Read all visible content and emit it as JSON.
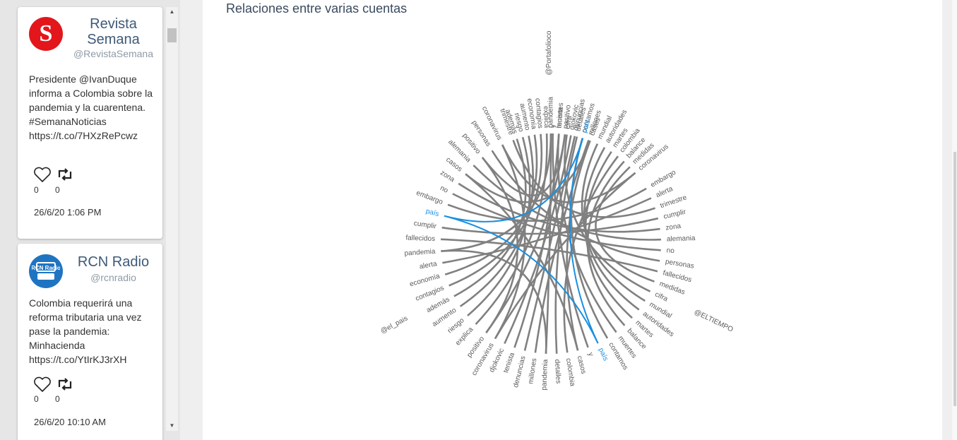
{
  "feed": {
    "tweets": [
      {
        "name": "Revista Semana",
        "handle": "@RevistaSemana",
        "avatar_letter": "S",
        "avatar_color": "#e3161b",
        "text": "Presidente @IvanDuque informa a Colombia sobre la pandemia y la cuarentena. #SemanaNoticias https://t.co/7HXzRePcwz",
        "likes": "0",
        "retweets": "0",
        "date": "26/6/20 1:06 PM"
      },
      {
        "name": "RCN Radio",
        "handle": "@rcnradio",
        "avatar_letter": "RCN Radio",
        "avatar_color": "#1f74c2",
        "text": "Colombia requerirá una reforma tributaria una vez pase la pandemia: Minhacienda https://t.co/YtIrKJ3rXH",
        "likes": "0",
        "retweets": "0",
        "date": "26/6/20 10:10 AM"
      }
    ]
  },
  "main": {
    "title": "Relaciones entre varias cuentas"
  },
  "chart_data": {
    "type": "chord",
    "groups": [
      {
        "name": "@Portafolioco",
        "words": [
          "pandemia",
          "muertes",
          "cifra",
          "denuncias",
          "contamos",
          "casos",
          "mundial",
          "autoridades",
          "martes",
          "colombia",
          "balance",
          "medidas",
          "coronavirus"
        ]
      },
      {
        "name": "@ELTIEMPO",
        "words": [
          "embargo",
          "alerta",
          "trimestre",
          "cumplir",
          "zona",
          "alemania",
          "no",
          "personas",
          "fallecidos",
          "medidas",
          "cifra",
          "mundial",
          "autoridades",
          "martes",
          "balance",
          "muertes",
          "contamos",
          "país",
          "y",
          "casos",
          "colombia",
          "detalles",
          "pandemia",
          "millones",
          "denuncias",
          "tenista",
          "djokovic",
          "coronavirus",
          "positivo"
        ]
      },
      {
        "name": "@el_pais",
        "words": [
          "explica",
          "riesgo",
          "aumento",
          "además",
          "contagios",
          "economía",
          "alerta",
          "pandemia",
          "fallecidos",
          "cumplir",
          "país",
          "embargo",
          "no",
          "zona",
          "casos",
          "alemania",
          "positivo",
          "personas",
          "coronavirus",
          "trimestre"
        ]
      },
      {
        "name": "@Portafolioco",
        "words": [
          "además",
          "riesgo",
          "aumento",
          "economía",
          "contagios",
          "explica",
          "y",
          "tenista",
          "positivo",
          "djokovic",
          "detalles",
          "país",
          "millones"
        ]
      }
    ],
    "highlight": "país",
    "highlight_color": "#1a8fe0",
    "link_color": "#808080"
  }
}
